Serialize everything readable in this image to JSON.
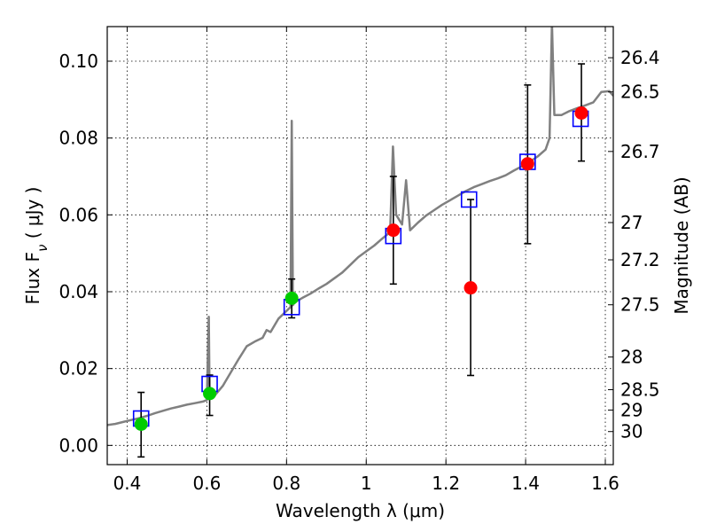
{
  "chart_data": {
    "type": "scatter",
    "xlabel": "Wavelength  λ (μm)",
    "ylabel": "Flux  F_ν  ( μJy )",
    "ylabel_right": "Magnitude (AB)",
    "xlim": [
      0.35,
      1.62
    ],
    "ylim": [
      -0.005,
      0.109
    ],
    "grid": true,
    "x_ticks": [
      0.4,
      0.6,
      0.8,
      1.0,
      1.2,
      1.4,
      1.6
    ],
    "x_tick_labels": [
      "0.4",
      "0.6",
      "0.8",
      "1",
      "1.2",
      "1.4",
      "1.6"
    ],
    "y_ticks": [
      0.0,
      0.02,
      0.04,
      0.06,
      0.08,
      0.1
    ],
    "y_tick_labels": [
      "0.00",
      "0.02",
      "0.04",
      "0.06",
      "0.08",
      "0.10"
    ],
    "mag_ticks": [
      {
        "label": "26.4",
        "flux": 0.1009
      },
      {
        "label": "26.5",
        "flux": 0.092
      },
      {
        "label": "26.7",
        "flux": 0.0765
      },
      {
        "label": "27",
        "flux": 0.058
      },
      {
        "label": "27.2",
        "flux": 0.0483
      },
      {
        "label": "27.5",
        "flux": 0.0366
      },
      {
        "label": "28",
        "flux": 0.023
      },
      {
        "label": "28.5",
        "flux": 0.0145
      },
      {
        "label": "29",
        "flux": 0.0092
      },
      {
        "label": "30",
        "flux": 0.0036
      }
    ],
    "series": [
      {
        "style": "line",
        "color": "#808080",
        "points": [
          [
            0.35,
            0.0053
          ],
          [
            0.37,
            0.0056
          ],
          [
            0.39,
            0.0061
          ],
          [
            0.41,
            0.0066
          ],
          [
            0.43,
            0.0071
          ],
          [
            0.45,
            0.0077
          ],
          [
            0.47,
            0.0084
          ],
          [
            0.49,
            0.009
          ],
          [
            0.51,
            0.0096
          ],
          [
            0.53,
            0.0101
          ],
          [
            0.55,
            0.0106
          ],
          [
            0.57,
            0.011
          ],
          [
            0.59,
            0.0114
          ],
          [
            0.6,
            0.0118
          ],
          [
            0.605,
            0.0335
          ],
          [
            0.607,
            0.012
          ],
          [
            0.62,
            0.013
          ],
          [
            0.64,
            0.0155
          ],
          [
            0.66,
            0.019
          ],
          [
            0.68,
            0.0225
          ],
          [
            0.7,
            0.0258
          ],
          [
            0.72,
            0.027
          ],
          [
            0.74,
            0.028
          ],
          [
            0.75,
            0.03
          ],
          [
            0.76,
            0.0295
          ],
          [
            0.78,
            0.033
          ],
          [
            0.8,
            0.035
          ],
          [
            0.81,
            0.036
          ],
          [
            0.813,
            0.0845
          ],
          [
            0.816,
            0.0365
          ],
          [
            0.82,
            0.0372
          ],
          [
            0.84,
            0.0384
          ],
          [
            0.86,
            0.0395
          ],
          [
            0.88,
            0.0408
          ],
          [
            0.9,
            0.042
          ],
          [
            0.92,
            0.0435
          ],
          [
            0.94,
            0.045
          ],
          [
            0.96,
            0.047
          ],
          [
            0.98,
            0.049
          ],
          [
            1.0,
            0.0505
          ],
          [
            1.02,
            0.052
          ],
          [
            1.04,
            0.0538
          ],
          [
            1.06,
            0.0555
          ],
          [
            1.067,
            0.0778
          ],
          [
            1.075,
            0.06
          ],
          [
            1.09,
            0.0575
          ],
          [
            1.1,
            0.069
          ],
          [
            1.11,
            0.056
          ],
          [
            1.13,
            0.058
          ],
          [
            1.15,
            0.0598
          ],
          [
            1.17,
            0.0612
          ],
          [
            1.19,
            0.0626
          ],
          [
            1.21,
            0.0638
          ],
          [
            1.23,
            0.065
          ],
          [
            1.25,
            0.0662
          ],
          [
            1.27,
            0.0672
          ],
          [
            1.29,
            0.068
          ],
          [
            1.31,
            0.0688
          ],
          [
            1.33,
            0.0695
          ],
          [
            1.35,
            0.0703
          ],
          [
            1.37,
            0.0715
          ],
          [
            1.39,
            0.0726
          ],
          [
            1.41,
            0.0738
          ],
          [
            1.43,
            0.0752
          ],
          [
            1.45,
            0.077
          ],
          [
            1.46,
            0.08
          ],
          [
            1.466,
            0.11
          ],
          [
            1.472,
            0.086
          ],
          [
            1.49,
            0.086
          ],
          [
            1.51,
            0.087
          ],
          [
            1.53,
            0.0878
          ],
          [
            1.55,
            0.0885
          ],
          [
            1.57,
            0.0893
          ],
          [
            1.59,
            0.092
          ],
          [
            1.61,
            0.0922
          ],
          [
            1.62,
            0.091
          ]
        ]
      },
      {
        "style": "open-square",
        "color": "#0000ff",
        "points": [
          [
            0.435,
            0.007
          ],
          [
            0.607,
            0.016
          ],
          [
            0.813,
            0.036
          ],
          [
            1.068,
            0.0545
          ],
          [
            1.258,
            0.064
          ],
          [
            1.405,
            0.0738
          ],
          [
            1.538,
            0.085
          ]
        ]
      },
      {
        "style": "filled-circle",
        "color": "#00cc00",
        "points": [
          [
            0.435,
            0.0055
          ],
          [
            0.607,
            0.0135
          ],
          [
            0.813,
            0.0383
          ]
        ],
        "errors": [
          [
            -0.003,
            0.0138
          ],
          [
            0.0078,
            0.0183
          ],
          [
            0.0332,
            0.0433
          ]
        ]
      },
      {
        "style": "filled-circle",
        "color": "#ff0000",
        "points": [
          [
            1.068,
            0.056
          ],
          [
            1.262,
            0.041
          ],
          [
            1.405,
            0.0733
          ],
          [
            1.54,
            0.0865
          ]
        ],
        "errors": [
          [
            0.042,
            0.07
          ],
          [
            0.0182,
            0.064
          ],
          [
            0.0525,
            0.0938
          ],
          [
            0.074,
            0.0993
          ]
        ]
      }
    ]
  }
}
